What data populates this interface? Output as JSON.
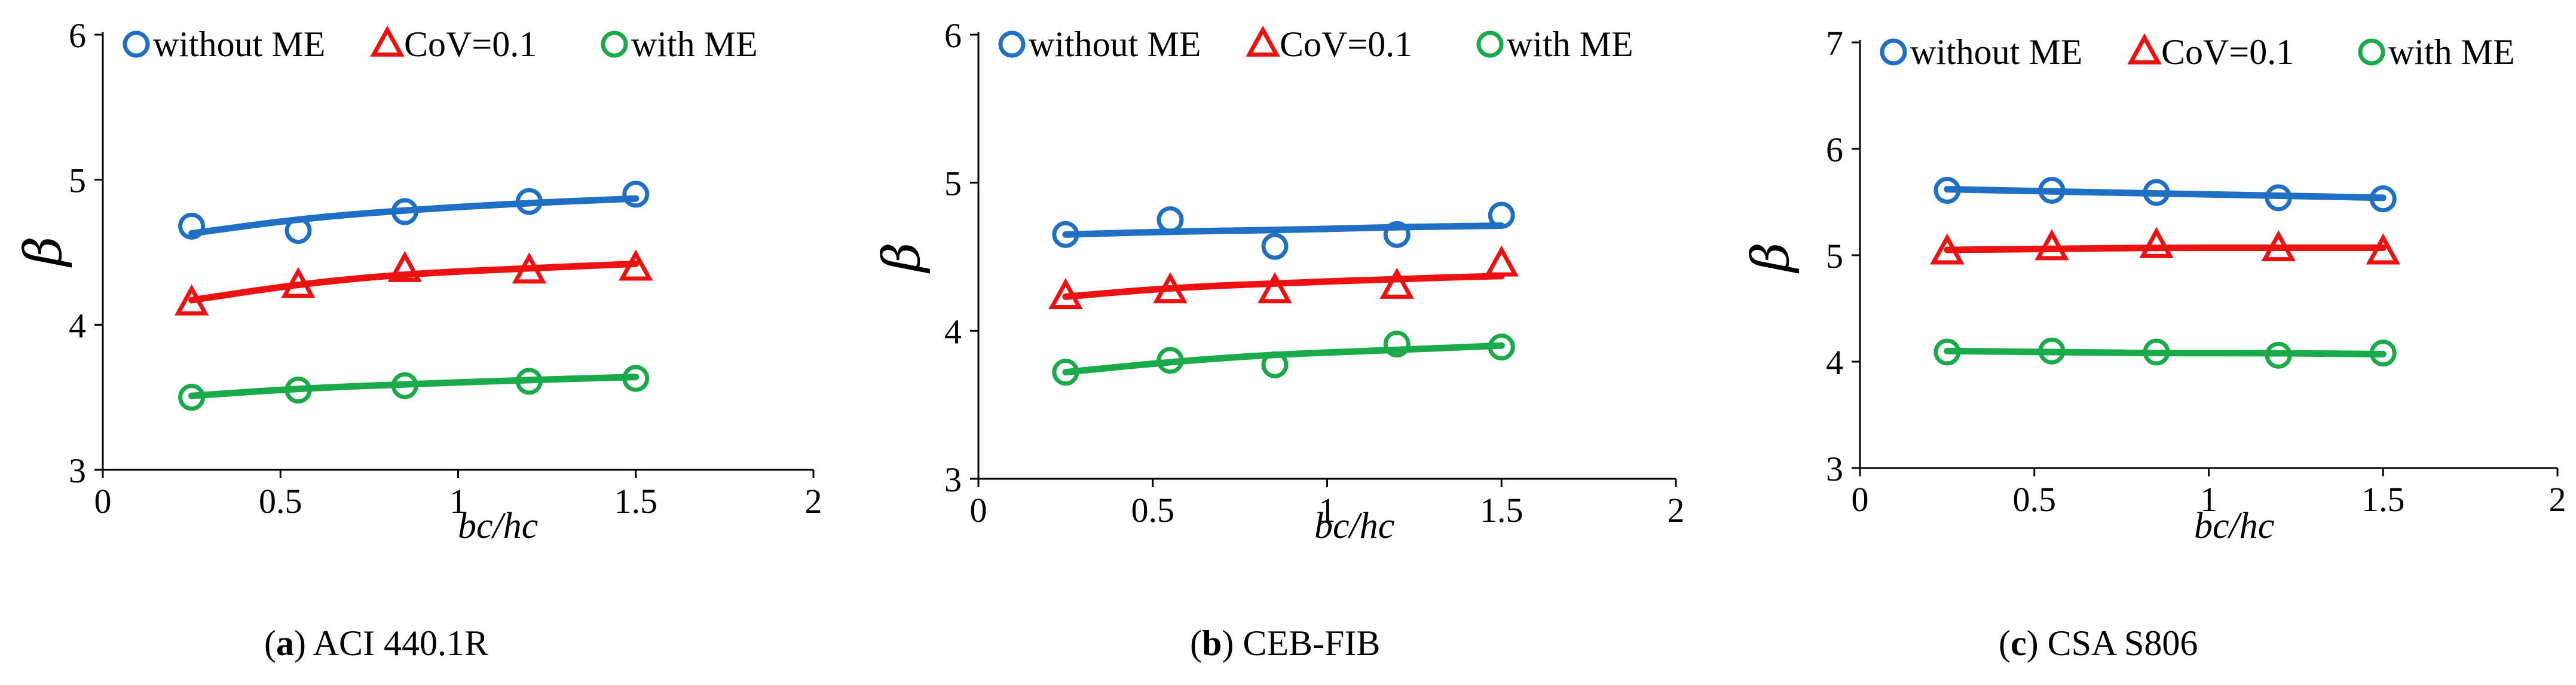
{
  "chart_data": [
    {
      "type": "scatter",
      "caption_letter": "a",
      "caption_text": "ACI 440.1R",
      "xlabel": "bc/hc",
      "ylabel": "β",
      "xlim": [
        0,
        2
      ],
      "ylim": [
        3,
        6
      ],
      "xticks": [
        "0",
        "0.5",
        "1",
        "1.5",
        "2"
      ],
      "yticks": [
        "3",
        "4",
        "5",
        "6"
      ],
      "legend": [
        "without ME",
        "CoV=0.1",
        "with ME"
      ],
      "x": [
        0.25,
        0.55,
        0.85,
        1.2,
        1.5
      ],
      "series": [
        {
          "name": "without ME",
          "marker": "circle",
          "color": "#1f6fc5",
          "values": [
            4.68,
            4.65,
            4.78,
            4.85,
            4.9
          ],
          "trend": [
            4.63,
            4.73,
            4.79,
            4.84,
            4.87
          ]
        },
        {
          "name": "CoV=0.1",
          "marker": "triangle",
          "color": "#ee1111",
          "values": [
            4.15,
            4.27,
            4.38,
            4.37,
            4.39
          ],
          "trend": [
            4.17,
            4.28,
            4.35,
            4.39,
            4.42
          ]
        },
        {
          "name": "with ME",
          "marker": "circle",
          "color": "#1aaa4a",
          "values": [
            3.5,
            3.55,
            3.58,
            3.61,
            3.63
          ],
          "trend": [
            3.51,
            3.56,
            3.59,
            3.62,
            3.64
          ]
        }
      ]
    },
    {
      "type": "scatter",
      "caption_letter": "b",
      "caption_text": "CEB-FIB",
      "xlabel": "bc/hc",
      "ylabel": "β",
      "xlim": [
        0,
        2
      ],
      "ylim": [
        3,
        6
      ],
      "xticks": [
        "0",
        "0.5",
        "1",
        "1.5",
        "2"
      ],
      "yticks": [
        "3",
        "4",
        "5",
        "6"
      ],
      "legend": [
        "without ME",
        "CoV=0.1",
        "with ME"
      ],
      "x": [
        0.25,
        0.55,
        0.85,
        1.2,
        1.5
      ],
      "series": [
        {
          "name": "without ME",
          "marker": "circle",
          "color": "#1f6fc5",
          "values": [
            4.65,
            4.75,
            4.57,
            4.65,
            4.78
          ],
          "trend": [
            4.65,
            4.67,
            4.68,
            4.7,
            4.71
          ]
        },
        {
          "name": "CoV=0.1",
          "marker": "triangle",
          "color": "#ee1111",
          "values": [
            4.23,
            4.27,
            4.27,
            4.3,
            4.45
          ],
          "trend": [
            4.23,
            4.29,
            4.32,
            4.35,
            4.37
          ]
        },
        {
          "name": "with ME",
          "marker": "circle",
          "color": "#1aaa4a",
          "values": [
            3.72,
            3.8,
            3.77,
            3.91,
            3.89
          ],
          "trend": [
            3.72,
            3.79,
            3.84,
            3.87,
            3.9
          ]
        }
      ]
    },
    {
      "type": "scatter",
      "caption_letter": "c",
      "caption_text": "CSA S806",
      "xlabel": "bc/hc",
      "ylabel": "β",
      "xlim": [
        0,
        2
      ],
      "ylim": [
        3,
        7
      ],
      "xticks": [
        "0",
        "0.5",
        "1",
        "1.5",
        "2"
      ],
      "yticks": [
        "3",
        "4",
        "5",
        "6",
        "7"
      ],
      "legend": [
        "without ME",
        "CoV=0.1",
        "with ME"
      ],
      "x": [
        0.25,
        0.55,
        0.85,
        1.2,
        1.5
      ],
      "series": [
        {
          "name": "without ME",
          "marker": "circle",
          "color": "#1f6fc5",
          "values": [
            5.61,
            5.61,
            5.59,
            5.54,
            5.53
          ],
          "trend": [
            5.62,
            5.6,
            5.58,
            5.56,
            5.54
          ]
        },
        {
          "name": "CoV=0.1",
          "marker": "triangle",
          "color": "#ee1111",
          "values": [
            5.03,
            5.07,
            5.09,
            5.06,
            5.03
          ],
          "trend": [
            5.05,
            5.06,
            5.07,
            5.07,
            5.07
          ]
        },
        {
          "name": "with ME",
          "marker": "circle",
          "color": "#1aaa4a",
          "values": [
            4.09,
            4.1,
            4.09,
            4.06,
            4.08
          ],
          "trend": [
            4.1,
            4.09,
            4.08,
            4.08,
            4.07
          ]
        }
      ]
    }
  ]
}
